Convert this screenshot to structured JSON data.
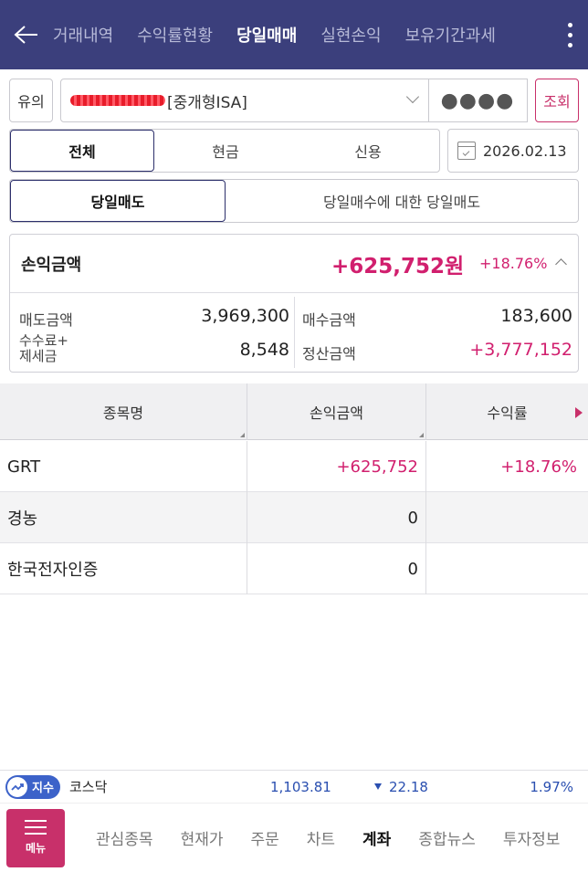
{
  "header": {
    "tabs": [
      {
        "label": "거래내역"
      },
      {
        "label": "수익률현황"
      },
      {
        "label": "당일매매"
      },
      {
        "label": "실현손익"
      },
      {
        "label": "보유기간과세"
      }
    ],
    "active_tab": "당일매매"
  },
  "account": {
    "caution_label": "유의",
    "account_name": "[중개형ISA]",
    "password_mask": "●●●●",
    "query_label": "조회"
  },
  "filter": {
    "types": [
      "전체",
      "현금",
      "신용"
    ],
    "active_type": "전체",
    "date": "2026.02.13"
  },
  "mode": {
    "options": [
      "당일매도",
      "당일매수에 대한 당일매도"
    ],
    "active": "당일매도"
  },
  "summary": {
    "title": "손익금액",
    "profit": "+625,752원",
    "rate": "+18.76%",
    "sell_amount_label": "매도금액",
    "sell_amount": "3,969,300",
    "buy_amount_label": "매수금액",
    "buy_amount": "183,600",
    "fee_label_line1": "수수료+",
    "fee_label_line2": "제세금",
    "fee": "8,548",
    "settle_label": "정산금액",
    "settle": "+3,777,152"
  },
  "table": {
    "headers": [
      "종목명",
      "손익금액",
      "수익률"
    ],
    "rows": [
      {
        "name": "GRT",
        "profit": "+625,752",
        "rate": "+18.76%"
      },
      {
        "name": "경농",
        "profit": "0",
        "rate": ""
      },
      {
        "name": "한국전자인증",
        "profit": "0",
        "rate": ""
      }
    ]
  },
  "ticker": {
    "badge": "지수",
    "name": "코스닥",
    "value": "1,103.81",
    "change": "22.18",
    "percent": "1.97%"
  },
  "bottom_nav": {
    "menu_label": "메뉴",
    "items": [
      "관심종목",
      "현재가",
      "주문",
      "차트",
      "계좌",
      "종합뉴스",
      "투자정보"
    ],
    "active": "계좌"
  },
  "colors": {
    "header_bg": "#3b3f7c",
    "accent": "#c8306a",
    "profit": "#d11f6e",
    "index_blue": "#2a4fb0"
  }
}
